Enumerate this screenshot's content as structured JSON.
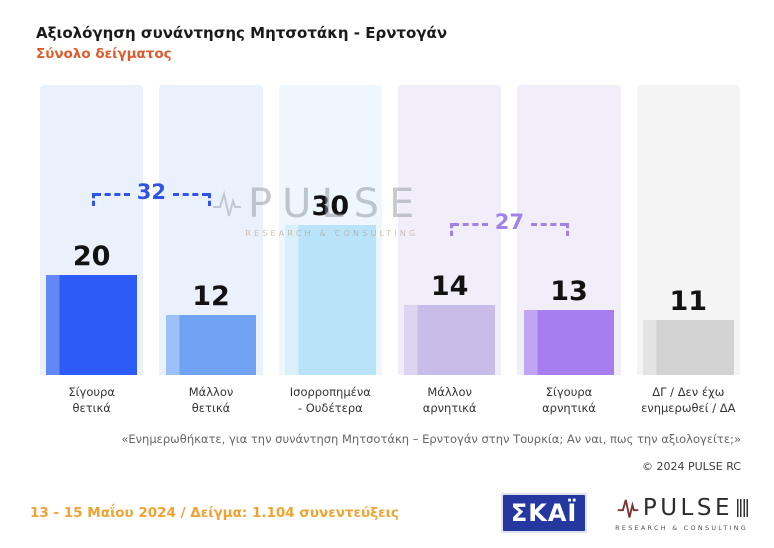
{
  "header": {
    "title": "Αξιολόγηση συνάντησης Μητσοτάκη - Ερντογάν",
    "subtitle": "Σύνολο δείγματος"
  },
  "chart_data": {
    "type": "bar",
    "title": "Αξιολόγηση συνάντησης Μητσοτάκη - Ερντογάν",
    "subtitle": "Σύνολο δείγματος",
    "categories": [
      "Σίγουρα θετικά",
      "Μάλλον θετικά",
      "Ισορροπημένα - Ουδέτερα",
      "Μάλλον αρνητικά",
      "Σίγουρα αρνητικά",
      "ΔΓ / Δεν έχω ενημερωθεί / ΔΑ"
    ],
    "category_lines": [
      [
        "Σίγουρα",
        "θετικά"
      ],
      [
        "Μάλλον",
        "θετικά"
      ],
      [
        "Ισορροπημένα",
        "- Ουδέτερα"
      ],
      [
        "Μάλλον",
        "αρνητικά"
      ],
      [
        "Σίγουρα",
        "αρνητικά"
      ],
      [
        "ΔΓ / Δεν έχω",
        "ενημερωθεί / ΔΑ"
      ]
    ],
    "values": [
      20,
      12,
      30,
      14,
      13,
      11
    ],
    "bar_colors": [
      "#2d5bf5",
      "#6fa3f2",
      "#b9e3f8",
      "#c9bce8",
      "#a87df0",
      "#d2d2d2"
    ],
    "bar_highlight_colors": [
      "#6487f8",
      "#9cc0f7",
      "#d9f0fb",
      "#ddd4f1",
      "#c2a4f5",
      "#e3e3e3"
    ],
    "column_bg_colors": [
      "#eaf1fd",
      "#eaf1fd",
      "#edf7fd",
      "#f1eefa",
      "#f1eefa",
      "#f4f4f5"
    ],
    "annotations": [
      {
        "label": "32",
        "from": 0,
        "to": 1,
        "color": "#2e54e8"
      },
      {
        "label": "27",
        "from": 3,
        "to": 4,
        "color": "#a083ea"
      }
    ],
    "ylim": [
      0,
      34
    ],
    "grid": false,
    "legend": false
  },
  "watermark": {
    "text": "PULSE",
    "tagline": "RESEARCH & CONSULTING"
  },
  "notes": {
    "question": "«Ενημερωθήκατε, για την συνάντηση Μητσοτάκη – Ερντογάν στην Τουρκία; Αν ναι, πως την αξιολογείτε;»",
    "copyright": "© 2024 PULSE RC"
  },
  "footer": {
    "survey_info": "13 - 15 Μαΐου 2024 / Δείγμα: 1.104 συνεντεύξεις",
    "skai_logo_text": "ΣΚΑΪ",
    "pulse_logo_text": "PULSE",
    "pulse_logo_tagline": "RESEARCH & CONSULTING"
  },
  "colors": {
    "subtitle": "#e05a2b",
    "footer_text": "#f0a232",
    "skai_blue": "#2438a0",
    "pulse_red": "#7d3434"
  }
}
